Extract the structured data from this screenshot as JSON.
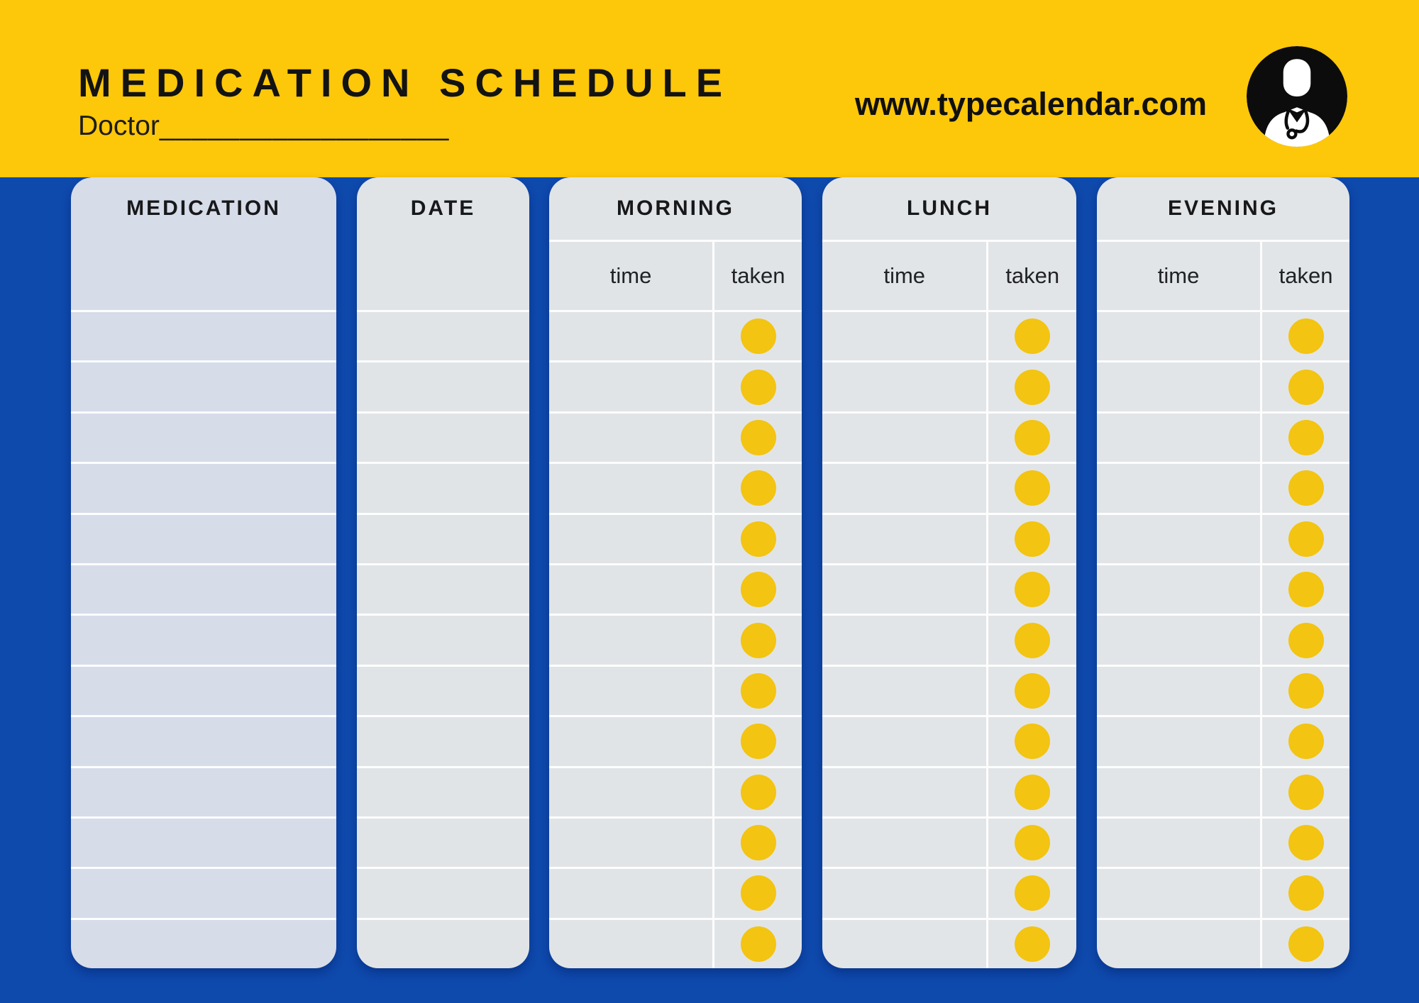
{
  "header": {
    "title": "MEDICATION SCHEDULE",
    "doctor_label": "Doctor",
    "doctor_blank": "__________________",
    "website": "www.typecalendar.com",
    "avatar_icon": "doctor-in-black-circle"
  },
  "colors": {
    "banner_yellow": "#fdc70a",
    "background_blue": "#0e49ac",
    "dot_yellow": "#f3c411",
    "grid_line": "rgba(255,255,255,0.92)",
    "text_dark": "#131313"
  },
  "table": {
    "rows": 13,
    "columns": [
      {
        "id": "medication",
        "title": "MEDICATION",
        "type": "plain",
        "card_background": "#d7dce9"
      },
      {
        "id": "date",
        "title": "DATE",
        "type": "plain",
        "card_background": "#e1e4e7"
      },
      {
        "id": "morning",
        "title": "MORNING",
        "type": "time-taken",
        "card_background": "#e1e4e7",
        "subcolumns": [
          "time",
          "taken"
        ]
      },
      {
        "id": "lunch",
        "title": "LUNCH",
        "type": "time-taken",
        "card_background": "#e2e5e7",
        "subcolumns": [
          "time",
          "taken"
        ]
      },
      {
        "id": "evening",
        "title": "EVENING",
        "type": "time-taken",
        "card_background": "#e2e5e7",
        "subcolumns": [
          "time",
          "taken"
        ]
      }
    ]
  }
}
